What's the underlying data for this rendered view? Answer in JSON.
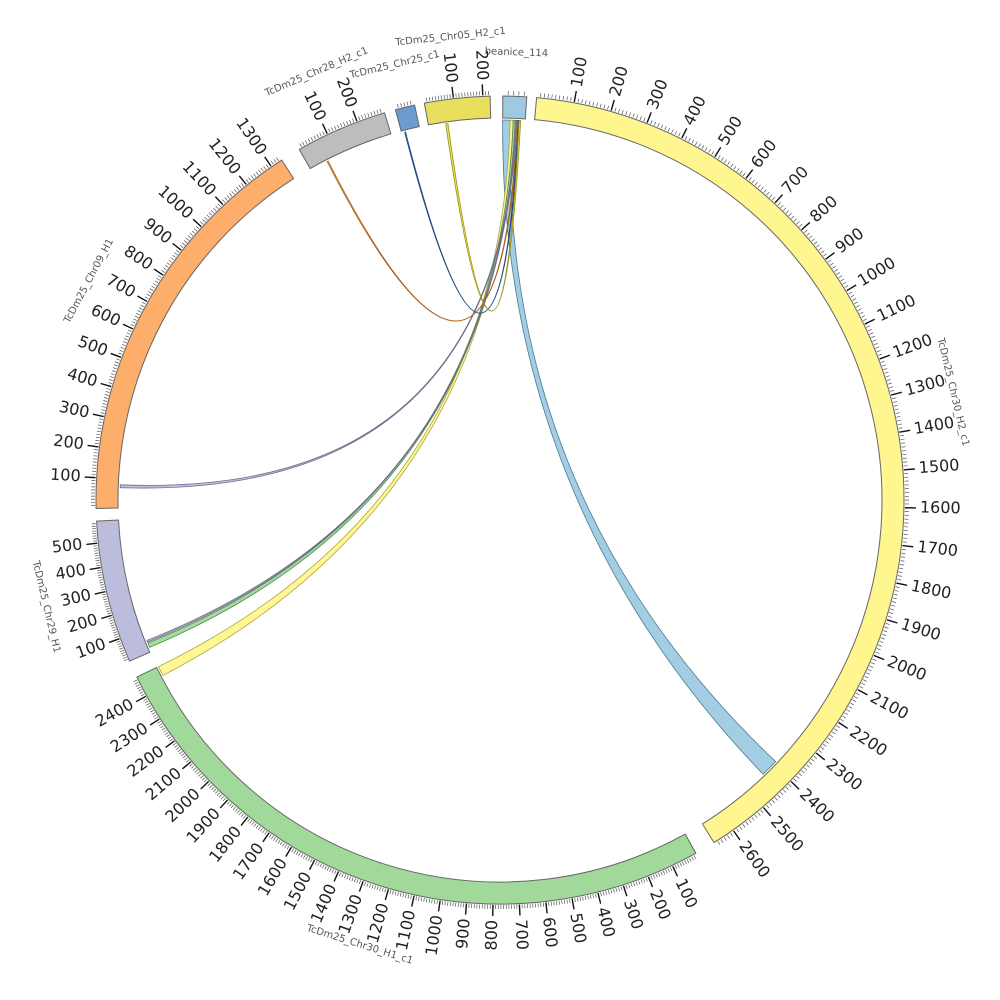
{
  "chart_data": {
    "type": "chord",
    "grid": false,
    "segments": [
      {
        "name": "beanice_114",
        "start": 0,
        "end": 45,
        "color": "#9ecae1",
        "ticks": []
      },
      {
        "name": "TcDm25_Chr30_H2_c1",
        "start": 0,
        "end": 2660,
        "color": "#fff68f",
        "ticks": [
          "100",
          "200",
          "300",
          "400",
          "500",
          "600",
          "700",
          "800",
          "900",
          "1000",
          "1100",
          "1200",
          "1300",
          "1400",
          "1500",
          "1600",
          "1700",
          "1800",
          "1900",
          "2000",
          "2100",
          "2200",
          "2300",
          "2400",
          "2500",
          "2600"
        ]
      },
      {
        "name": "TcDm25_Chr30_H1_c1",
        "start": 0,
        "end": 2480,
        "color": "#a1d99b",
        "ticks": [
          "100",
          "200",
          "300",
          "400",
          "500",
          "600",
          "700",
          "800",
          "900",
          "1000",
          "1100",
          "1200",
          "1300",
          "1400",
          "1500",
          "1600",
          "1700",
          "1800",
          "1900",
          "2000",
          "2100",
          "2200",
          "2300",
          "2400"
        ]
      },
      {
        "name": "TcDm25_Chr29_H1",
        "start": 0,
        "end": 590,
        "color": "#bcbddc",
        "ticks": [
          "100",
          "200",
          "300",
          "400",
          "500"
        ]
      },
      {
        "name": "TcDm25_Chr09_H1",
        "start": 0,
        "end": 1340,
        "color": "#fdae6b",
        "ticks": [
          "100",
          "200",
          "300",
          "400",
          "500",
          "600",
          "700",
          "800",
          "900",
          "1000",
          "1100",
          "1200",
          "1300"
        ]
      },
      {
        "name": "TcDm25_Chr28_H2_c1",
        "start": 0,
        "end": 290,
        "color": "#bdbdbd",
        "ticks": [
          "100",
          "200"
        ]
      },
      {
        "name": "TcDm25_Chr25_c1",
        "start": 0,
        "end": 60,
        "color": "#6b9bd1",
        "ticks": []
      },
      {
        "name": "TcDm25_Chr05_H2_c1",
        "start": 0,
        "end": 225,
        "color": "#e8e05c",
        "ticks": [
          "100",
          "200"
        ]
      }
    ],
    "links": [
      {
        "color": "#9ecae1",
        "source": {
          "segment": 0,
          "start": 0,
          "end": 15
        },
        "target": {
          "segment": 1,
          "start": 2390,
          "end": 2440
        }
      },
      {
        "color": "#fff68f",
        "source": {
          "segment": 0,
          "start": 15,
          "end": 21
        },
        "target": {
          "segment": 2,
          "start": 2440,
          "end": 2480
        }
      },
      {
        "color": "#a1d99b",
        "source": {
          "segment": 0,
          "start": 21,
          "end": 25
        },
        "target": {
          "segment": 3,
          "start": 20,
          "end": 40
        }
      },
      {
        "color": "#bcbddc",
        "source": {
          "segment": 0,
          "start": 25,
          "end": 27
        },
        "target": {
          "segment": 3,
          "start": 45,
          "end": 52
        }
      },
      {
        "color": "#bcbddc",
        "source": {
          "segment": 0,
          "start": 27,
          "end": 29
        },
        "target": {
          "segment": 4,
          "start": 70,
          "end": 80
        }
      },
      {
        "color": "#fdae6b",
        "source": {
          "segment": 0,
          "start": 29,
          "end": 31
        },
        "target": {
          "segment": 5,
          "start": 60,
          "end": 64
        }
      },
      {
        "color": "#6b9bd1",
        "source": {
          "segment": 0,
          "start": 31,
          "end": 33
        },
        "target": {
          "segment": 6,
          "start": 10,
          "end": 13
        }
      },
      {
        "color": "#e8e05c",
        "source": {
          "segment": 0,
          "start": 33,
          "end": 36
        },
        "target": {
          "segment": 7,
          "start": 62,
          "end": 70
        }
      }
    ]
  }
}
